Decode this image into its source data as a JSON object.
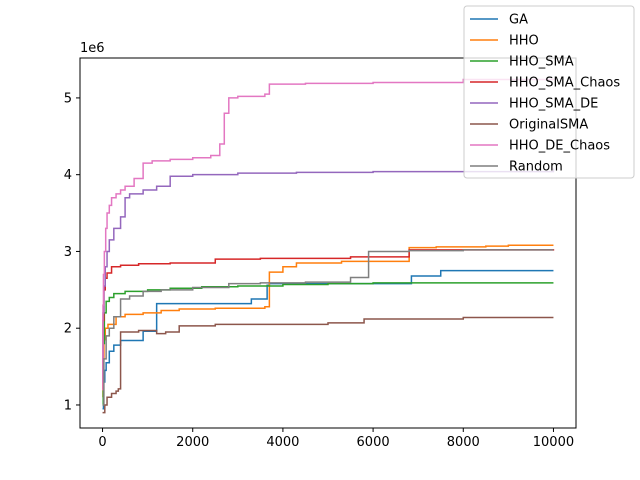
{
  "chart_data": {
    "type": "line",
    "title": "",
    "xlabel": "",
    "ylabel": "",
    "y_scale_label": "1e6",
    "xlim": [
      -500,
      10500
    ],
    "ylim": [
      700000,
      5520000
    ],
    "x_ticks": [
      0,
      2000,
      4000,
      6000,
      8000,
      10000
    ],
    "x_tick_labels": [
      "0",
      "2000",
      "4000",
      "6000",
      "8000",
      "10000"
    ],
    "y_ticks": [
      1000000,
      2000000,
      3000000,
      4000000,
      5000000
    ],
    "y_tick_labels": [
      "1",
      "2",
      "3",
      "4",
      "5"
    ],
    "grid": false,
    "legend_position": "top-right",
    "step": true,
    "series": [
      {
        "name": "GA",
        "color": "#1f77b4",
        "x": [
          0,
          20,
          50,
          80,
          150,
          250,
          400,
          900,
          1200,
          3300,
          3650,
          3700,
          6850,
          7500,
          10000
        ],
        "y": [
          950000,
          1300000,
          1450000,
          1550000,
          1700000,
          1780000,
          1840000,
          1960000,
          2320000,
          2380000,
          2560000,
          2580000,
          2680000,
          2750000,
          2750000
        ]
      },
      {
        "name": "HHO",
        "color": "#ff7f0e",
        "x": [
          0,
          10,
          30,
          60,
          120,
          300,
          500,
          900,
          1300,
          1700,
          2500,
          3600,
          3700,
          4000,
          4300,
          5300,
          6800,
          7400,
          8500,
          9000,
          10000
        ],
        "y": [
          1100000,
          1600000,
          1850000,
          2000000,
          2050000,
          2150000,
          2180000,
          2200000,
          2230000,
          2250000,
          2260000,
          2280000,
          2730000,
          2800000,
          2850000,
          2870000,
          3050000,
          3060000,
          3070000,
          3080000,
          3080000
        ]
      },
      {
        "name": "HHO_SMA",
        "color": "#2ca02c",
        "x": [
          0,
          15,
          40,
          80,
          150,
          250,
          500,
          1000,
          1500,
          2200,
          3000,
          4000,
          5000,
          6000,
          10000
        ],
        "y": [
          1000000,
          1800000,
          2200000,
          2350000,
          2400000,
          2450000,
          2480000,
          2500000,
          2520000,
          2540000,
          2550000,
          2570000,
          2580000,
          2590000,
          2590000
        ]
      },
      {
        "name": "HHO_SMA_Chaos",
        "color": "#d62728",
        "x": [
          0,
          10,
          30,
          60,
          100,
          200,
          400,
          800,
          1500,
          2500,
          3500,
          5500,
          6800,
          10000
        ],
        "y": [
          1200000,
          2100000,
          2500000,
          2650000,
          2720000,
          2800000,
          2820000,
          2840000,
          2850000,
          2900000,
          2910000,
          2930000,
          3020000,
          3030000
        ]
      },
      {
        "name": "HHO_SMA_DE",
        "color": "#9467bd",
        "x": [
          0,
          10,
          30,
          60,
          100,
          150,
          250,
          400,
          500,
          600,
          900,
          1200,
          1500,
          2000,
          3000,
          4300,
          6000,
          10000
        ],
        "y": [
          1300000,
          2200000,
          2550000,
          2800000,
          3000000,
          3150000,
          3300000,
          3450000,
          3700000,
          3750000,
          3800000,
          3850000,
          3980000,
          4000000,
          4020000,
          4030000,
          4040000,
          4080000
        ]
      },
      {
        "name": "OriginalSMA",
        "color": "#8c564b",
        "x": [
          0,
          50,
          100,
          200,
          300,
          350,
          400,
          800,
          1200,
          1400,
          1700,
          2500,
          5000,
          5800,
          8000,
          10000
        ],
        "y": [
          900000,
          1000000,
          1100000,
          1150000,
          1180000,
          1210000,
          1950000,
          1970000,
          1930000,
          1950000,
          2030000,
          2050000,
          2070000,
          2120000,
          2140000,
          2140000
        ]
      },
      {
        "name": "HHO_DE_Chaos",
        "color": "#e377c2",
        "x": [
          0,
          10,
          20,
          40,
          70,
          100,
          150,
          200,
          300,
          400,
          500,
          700,
          900,
          1100,
          1500,
          2000,
          2400,
          2600,
          2700,
          2800,
          3000,
          3600,
          3700,
          4500,
          6000,
          8000,
          10000
        ],
        "y": [
          1200000,
          2300000,
          2700000,
          3000000,
          3300000,
          3500000,
          3600000,
          3700000,
          3750000,
          3800000,
          3850000,
          3950000,
          4150000,
          4180000,
          4200000,
          4220000,
          4250000,
          4400000,
          4800000,
          5000000,
          5020000,
          5050000,
          5180000,
          5190000,
          5200000,
          5240000,
          5250000
        ]
      },
      {
        "name": "Random",
        "color": "#7f7f7f",
        "x": [
          0,
          30,
          80,
          150,
          250,
          400,
          600,
          900,
          1300,
          2000,
          2800,
          3500,
          4500,
          5500,
          5900,
          6800,
          8000,
          10000
        ],
        "y": [
          1000000,
          1600000,
          1900000,
          2000000,
          2150000,
          2380000,
          2420000,
          2480000,
          2500000,
          2530000,
          2580000,
          2590000,
          2600000,
          2660000,
          3000000,
          3010000,
          3020000,
          3020000
        ]
      }
    ]
  }
}
